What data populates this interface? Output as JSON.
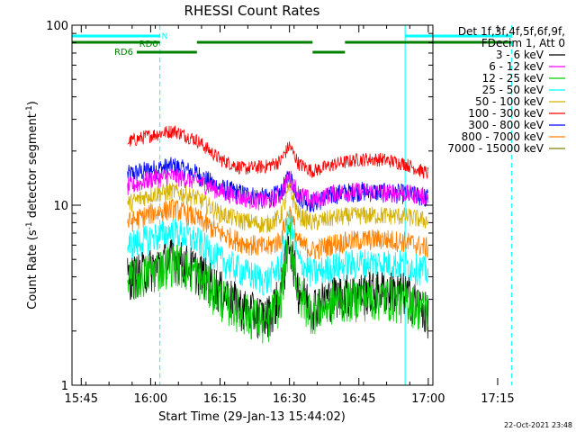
{
  "chart_data": {
    "type": "line",
    "title": "RHESSI Count Rates",
    "xlabel": "Start Time (29-Jan-13 15:44:02)",
    "ylabel_main": "Count Rate (s",
    "ylabel_sup": "-1",
    "ylabel_tail": " detector segment",
    "ylabel_sup2": "-1",
    "ylabel_close": ")",
    "y_scale": "log",
    "ylim": [
      1,
      100
    ],
    "y_ticks": [
      {
        "value": 1,
        "label": "1"
      },
      {
        "value": 10,
        "label": "10"
      },
      {
        "value": 100,
        "label": "100"
      }
    ],
    "x_range_min": [
      -1,
      77
    ],
    "x_ticks": [
      {
        "min": 1,
        "label": "15:45"
      },
      {
        "min": 16,
        "label": "16:00"
      },
      {
        "min": 31,
        "label": "16:15"
      },
      {
        "min": 46,
        "label": "16:30"
      },
      {
        "min": 61,
        "label": "16:45"
      },
      {
        "min": 76,
        "label": "17:00"
      },
      {
        "min": 91,
        "label": "17:15"
      }
    ],
    "legend_header": [
      "Det 1f,3f,4f,5f,6f,9f,",
      "FDecim 1, Att 0"
    ],
    "legend_position": "right",
    "footer": "22-Oct-2021 23:48",
    "state_bars": {
      "night": {
        "label": "N",
        "color": "#00ffff",
        "segments": [
          [
            -1,
            18
          ],
          [
            71,
            94
          ]
        ]
      },
      "rd0": {
        "label": "RD0",
        "color": "#008000",
        "segments": [
          [
            -1,
            18
          ],
          [
            26,
            51
          ],
          [
            58,
            94
          ]
        ]
      },
      "rd6": {
        "label": "RD6",
        "color": "#008000",
        "segments": [
          [
            13,
            26
          ],
          [
            51,
            58
          ]
        ]
      }
    },
    "vlines": [
      {
        "min": -1,
        "style": "solid",
        "color": "#00ffff"
      },
      {
        "min": 18,
        "style": "dashed",
        "color": "#00ffff"
      },
      {
        "min": 71,
        "style": "solid",
        "color": "#00ffff"
      },
      {
        "min": 94,
        "style": "dashed",
        "color": "#00ffff"
      }
    ],
    "x_sample_min": [
      11,
      16,
      21,
      26,
      31,
      36,
      41,
      44,
      46,
      48,
      51,
      56,
      61,
      66,
      71,
      76
    ],
    "series": [
      {
        "name": "3 - 6 keV",
        "color": "#000000",
        "values": [
          4.0,
          4.5,
          5.2,
          4.4,
          3.4,
          2.7,
          2.4,
          3.2,
          6.5,
          3.4,
          2.8,
          3.2,
          3.3,
          3.4,
          3.3,
          2.5
        ],
        "noise": 0.28
      },
      {
        "name": "6 - 12 keV",
        "color": "#ff00ff",
        "values": [
          12.6,
          14.0,
          14.5,
          13.6,
          12.0,
          11.0,
          10.4,
          11.4,
          14.5,
          11.6,
          10.6,
          11.8,
          12.0,
          11.8,
          11.7,
          11.2
        ],
        "noise": 0.12
      },
      {
        "name": "12 - 25 keV",
        "color": "#00cc00",
        "values": [
          3.8,
          4.3,
          4.9,
          4.2,
          3.1,
          2.6,
          2.2,
          3.0,
          7.0,
          3.2,
          2.6,
          3.0,
          3.1,
          3.1,
          3.0,
          2.6
        ],
        "noise": 0.28
      },
      {
        "name": "25 - 50 keV",
        "color": "#00ffff",
        "values": [
          6.0,
          6.6,
          7.2,
          6.4,
          5.0,
          4.3,
          3.8,
          4.6,
          8.3,
          4.9,
          4.2,
          4.6,
          4.8,
          4.8,
          4.7,
          4.3
        ],
        "noise": 0.2
      },
      {
        "name": "50 - 100 keV",
        "color": "#d4b000",
        "values": [
          10.2,
          11.5,
          12.0,
          11.0,
          9.0,
          8.2,
          7.8,
          8.6,
          12.5,
          8.8,
          8.0,
          8.6,
          8.8,
          8.8,
          8.7,
          8.2
        ],
        "noise": 0.12
      },
      {
        "name": "100 - 300 keV",
        "color": "#ff0000",
        "values": [
          22.5,
          24.5,
          26.0,
          23.0,
          18.0,
          16.0,
          16.5,
          17.5,
          21.5,
          17.0,
          15.5,
          17.0,
          18.0,
          18.0,
          17.0,
          15.0
        ],
        "noise": 0.09
      },
      {
        "name": "300 - 800 keV",
        "color": "#0000ff",
        "values": [
          14.8,
          15.8,
          16.5,
          15.0,
          12.5,
          11.6,
          11.0,
          11.6,
          14.6,
          11.2,
          10.3,
          11.6,
          12.0,
          11.8,
          11.6,
          11.0
        ],
        "noise": 0.13
      },
      {
        "name": "800 - 7000 keV",
        "color": "#ff8000",
        "values": [
          8.0,
          9.0,
          9.6,
          8.5,
          7.0,
          6.2,
          5.8,
          6.4,
          9.4,
          6.2,
          5.6,
          6.2,
          6.4,
          6.5,
          6.3,
          5.8
        ],
        "noise": 0.14
      },
      {
        "name": "7000 - 15000 keV",
        "color": "#808000",
        "values": [],
        "noise": 0
      }
    ]
  }
}
